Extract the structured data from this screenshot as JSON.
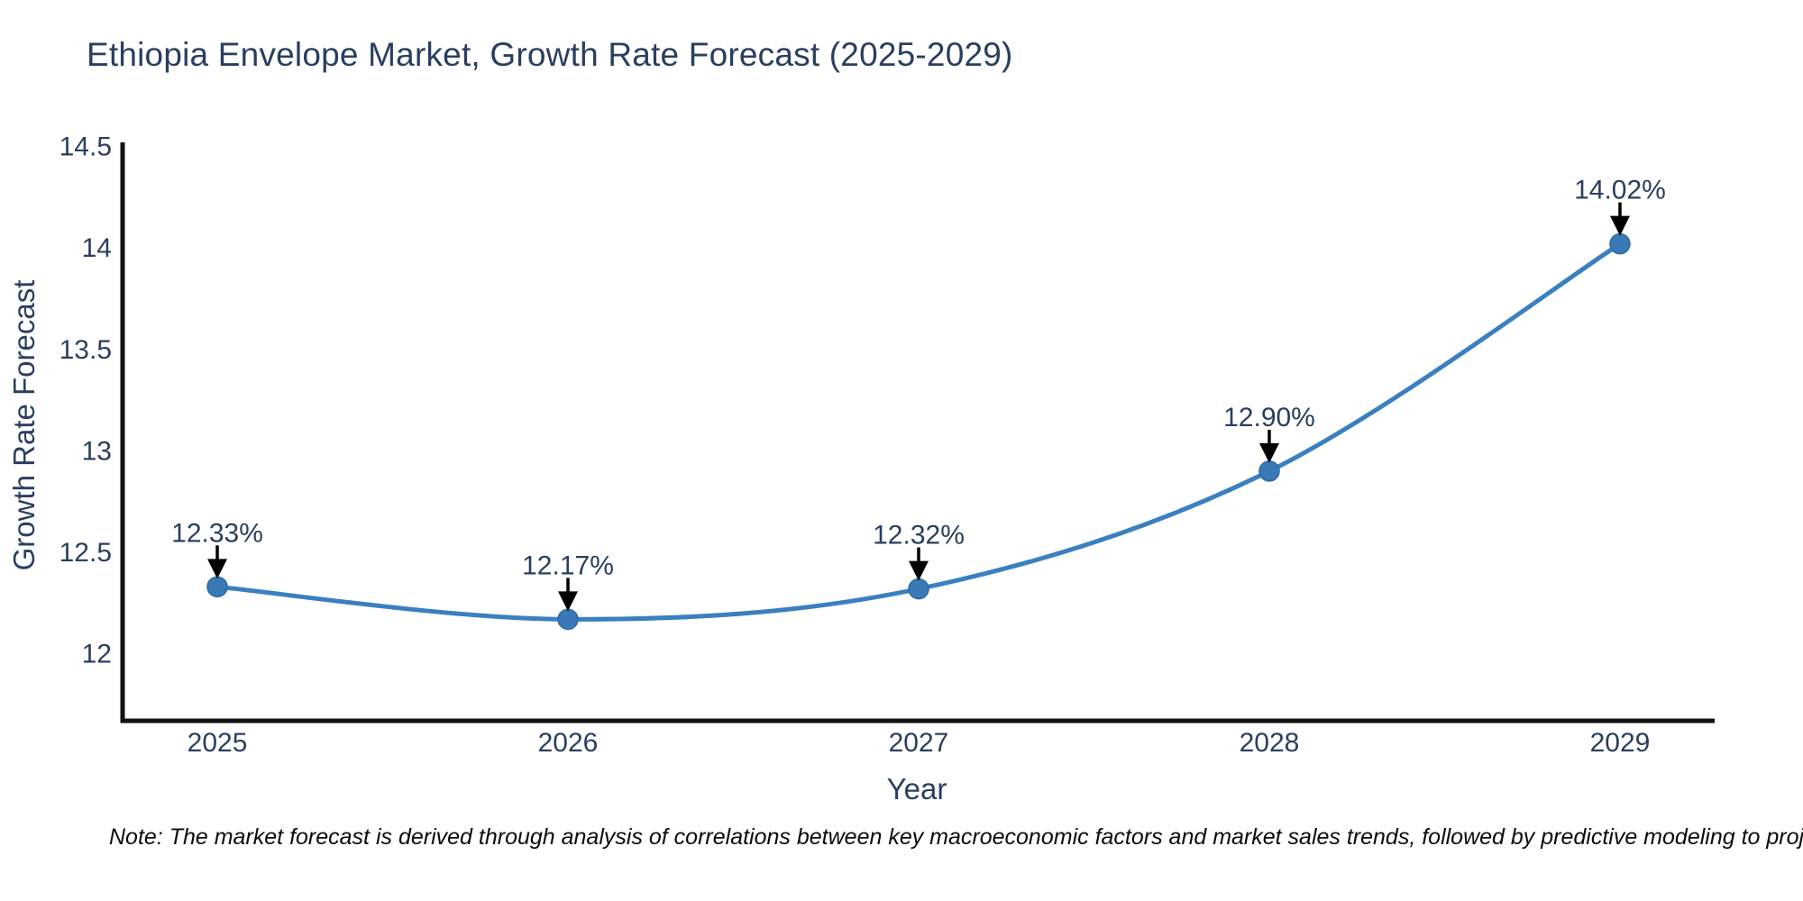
{
  "title": "Ethiopia Envelope Market, Growth Rate Forecast (2025-2029)",
  "note": "Note: The market forecast is derived through analysis of correlations between key macroeconomic factors and market sales trends, followed by predictive modeling to project future sal",
  "colors": {
    "line": "#3a80c0",
    "marker_fill": "#3879b6",
    "marker_edge": "#2d6aa3",
    "axis_line": "#111111",
    "text": "#2a3f5f",
    "annotation_arrow": "#000000"
  },
  "chart_data": {
    "type": "line",
    "line_shape": "spline",
    "x": [
      2025,
      2026,
      2027,
      2028,
      2029
    ],
    "xtick_labels": [
      "2025",
      "2026",
      "2027",
      "2028",
      "2029"
    ],
    "values": [
      12.33,
      12.17,
      12.32,
      12.9,
      14.02
    ],
    "point_labels": [
      "12.33%",
      "12.17%",
      "12.32%",
      "12.90%",
      "14.02%"
    ],
    "title": "Ethiopia Envelope Market, Growth Rate Forecast (2025-2029)",
    "xlabel": "Year",
    "ylabel": "Growth Rate Forecast",
    "yticks": [
      12,
      12.5,
      13,
      13.5,
      14,
      14.5
    ],
    "ytick_labels": [
      "12",
      "12.5",
      "13",
      "13.5",
      "14",
      "14.5"
    ],
    "ylim": [
      11.67,
      14.52
    ],
    "xlim": [
      2024.73,
      2029.27
    ],
    "grid": false,
    "legend": "none"
  }
}
